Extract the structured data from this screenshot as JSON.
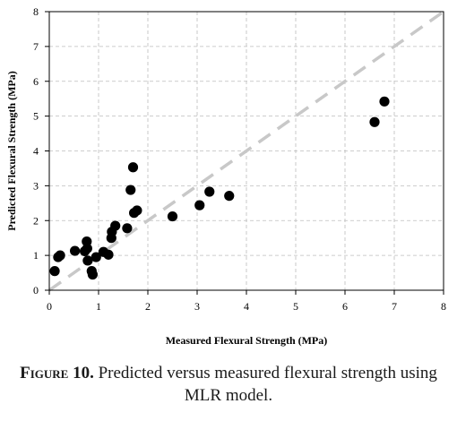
{
  "chart_data": {
    "type": "scatter",
    "xlabel": "Measured Flexural Strength (MPa)",
    "ylabel": "Predicted Flexural Strength (MPa)",
    "xlim": [
      0,
      8
    ],
    "ylim": [
      0,
      8
    ],
    "x_ticks": [
      "0",
      "1",
      "2",
      "3",
      "4",
      "5",
      "6",
      "7",
      "8"
    ],
    "y_ticks": [
      "0",
      "1",
      "2",
      "3",
      "4",
      "5",
      "6",
      "7",
      "8"
    ],
    "grid": true,
    "reference_line": {
      "style": "dashed",
      "color": "#c8c8c8",
      "from": [
        0,
        0
      ],
      "to": [
        8,
        8
      ]
    },
    "marker_color": "#000000",
    "points": [
      {
        "x": 0.11,
        "y": 0.55
      },
      {
        "x": 0.18,
        "y": 0.95
      },
      {
        "x": 0.22,
        "y": 1.0
      },
      {
        "x": 0.52,
        "y": 1.13
      },
      {
        "x": 0.72,
        "y": 1.12
      },
      {
        "x": 0.76,
        "y": 1.4
      },
      {
        "x": 0.77,
        "y": 1.2
      },
      {
        "x": 0.78,
        "y": 0.85
      },
      {
        "x": 0.86,
        "y": 0.55
      },
      {
        "x": 0.88,
        "y": 0.45
      },
      {
        "x": 0.95,
        "y": 0.95
      },
      {
        "x": 1.1,
        "y": 1.1
      },
      {
        "x": 1.2,
        "y": 1.02
      },
      {
        "x": 1.26,
        "y": 1.5
      },
      {
        "x": 1.27,
        "y": 1.68
      },
      {
        "x": 1.34,
        "y": 1.85
      },
      {
        "x": 1.58,
        "y": 1.78
      },
      {
        "x": 1.65,
        "y": 2.88
      },
      {
        "x": 1.7,
        "y": 3.53
      },
      {
        "x": 1.72,
        "y": 2.22
      },
      {
        "x": 1.78,
        "y": 2.29
      },
      {
        "x": 2.5,
        "y": 2.12
      },
      {
        "x": 3.05,
        "y": 2.44
      },
      {
        "x": 3.25,
        "y": 2.83
      },
      {
        "x": 3.65,
        "y": 2.71
      },
      {
        "x": 6.6,
        "y": 4.83
      },
      {
        "x": 6.8,
        "y": 5.42
      }
    ]
  },
  "caption": {
    "label": "Figure 10.",
    "text": " Predicted versus measured flexural strength using MLR model."
  }
}
